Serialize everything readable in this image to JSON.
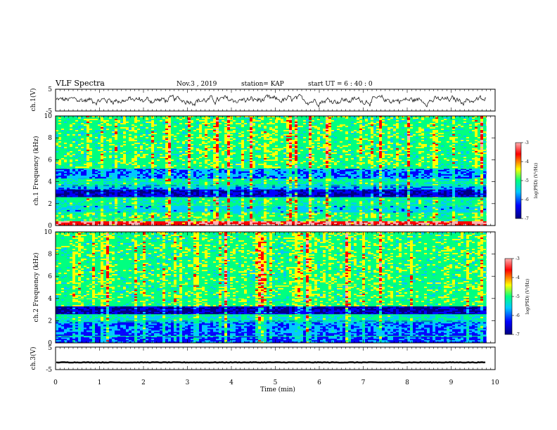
{
  "header": {
    "title": "VLF Spectra",
    "date": "Nov.3 , 2019",
    "station": "station= KAP",
    "start": "start UT = 6 : 40 : 0"
  },
  "chart_data": [
    {
      "type": "line",
      "panel": "waveform-ch1",
      "ylabel": "ch.1(V)",
      "ylim": [
        -5,
        5
      ],
      "yticks": [
        "5",
        "-5"
      ],
      "xlim": [
        0,
        10
      ],
      "waveform": {
        "mean_v": 0,
        "amplitude_v": 1.4,
        "x_end_min": 9.8
      }
    },
    {
      "type": "heatmap",
      "panel": "spectrogram-ch1",
      "ylabel": "ch.1 Frequency (kHz)",
      "ylim": [
        0,
        10
      ],
      "yticks": [
        "0",
        "2",
        "4",
        "6",
        "8",
        "10"
      ],
      "xlim": [
        0,
        10
      ],
      "x_end_min": 9.8,
      "colorbar": {
        "label": "log(PSD) (V²/Hz)",
        "range": [
          -7,
          -3
        ],
        "ticks": [
          "-3",
          "-4",
          "-5",
          "-6",
          "-7"
        ]
      },
      "bands": [
        {
          "from_khz": 0,
          "to_khz": 0.4,
          "level": -3.6
        },
        {
          "from_khz": 0.4,
          "to_khz": 1.2,
          "level": -5.0
        },
        {
          "from_khz": 1.2,
          "to_khz": 1.8,
          "level": -5.6
        },
        {
          "from_khz": 1.8,
          "to_khz": 2.6,
          "level": -5.2
        },
        {
          "from_khz": 2.6,
          "to_khz": 3.3,
          "level": -6.7
        },
        {
          "from_khz": 3.3,
          "to_khz": 3.7,
          "level": -5.9
        },
        {
          "from_khz": 3.7,
          "to_khz": 4.3,
          "level": -5.3
        },
        {
          "from_khz": 4.3,
          "to_khz": 5.2,
          "level": -6.0
        },
        {
          "from_khz": 5.2,
          "to_khz": 10,
          "level": -5.0
        }
      ]
    },
    {
      "type": "heatmap",
      "panel": "spectrogram-ch2",
      "ylabel": "ch.2 Frequency (kHz)",
      "ylim": [
        0,
        10
      ],
      "yticks": [
        "0",
        "2",
        "4",
        "6",
        "8",
        "10"
      ],
      "xlim": [
        0,
        10
      ],
      "x_end_min": 9.8,
      "colorbar": {
        "label": "log(PSD) (V²/Hz)",
        "range": [
          -7,
          -3
        ],
        "ticks": [
          "-3",
          "-4",
          "-5",
          "-6",
          "-7"
        ]
      },
      "bands": [
        {
          "from_khz": 0,
          "to_khz": 1.0,
          "level": -6.2
        },
        {
          "from_khz": 1.0,
          "to_khz": 2.0,
          "level": -6.0
        },
        {
          "from_khz": 2.0,
          "to_khz": 2.6,
          "level": -5.4
        },
        {
          "from_khz": 2.6,
          "to_khz": 3.3,
          "level": -6.8
        },
        {
          "from_khz": 3.3,
          "to_khz": 10,
          "level": -5.0
        }
      ]
    },
    {
      "type": "line",
      "panel": "waveform-ch3",
      "ylabel": "ch.3(V)",
      "ylim": [
        -5,
        5
      ],
      "yticks": [
        "5",
        "-5"
      ],
      "xlim": [
        0,
        10
      ],
      "waveform": {
        "mean_v": -1.8,
        "amplitude_v": 0.25,
        "x_end_min": 9.8
      }
    }
  ],
  "xaxis": {
    "label": "Time (min)",
    "ticks": [
      "0",
      "1",
      "2",
      "3",
      "4",
      "5",
      "6",
      "7",
      "8",
      "9",
      "10"
    ]
  },
  "colormap": [
    "#000080",
    "#0000ff",
    "#00c8ff",
    "#00ff80",
    "#ffff00",
    "#ff0000",
    "#ffb0b0"
  ]
}
